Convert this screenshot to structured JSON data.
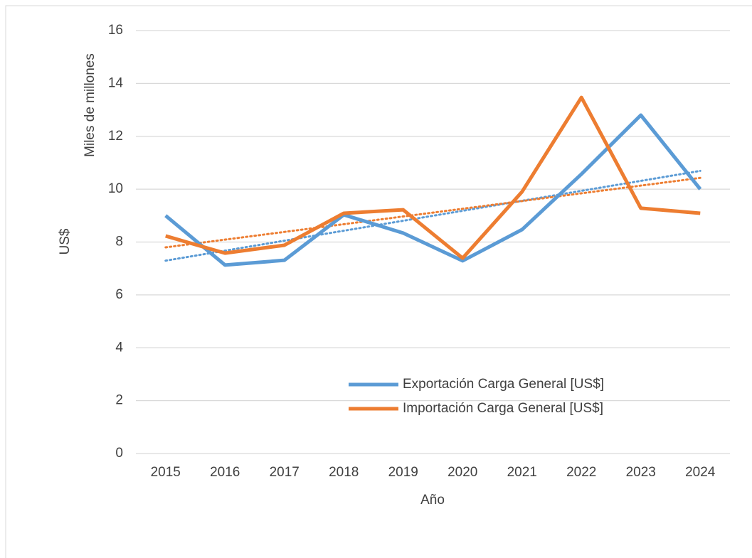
{
  "chart_data": {
    "type": "line",
    "y_label": "US$",
    "y_sublabel": "Miles de millones",
    "x_label": "Año",
    "categories": [
      "2015",
      "2016",
      "2017",
      "2018",
      "2019",
      "2020",
      "2021",
      "2022",
      "2023",
      "2024"
    ],
    "series": [
      {
        "name": "Exportación Carga General [US$]",
        "color": "#5b9bd5",
        "values": [
          9.0,
          7.13,
          7.31,
          9.03,
          8.34,
          7.29,
          8.47,
          10.57,
          12.8,
          10.0
        ]
      },
      {
        "name": "Importación Carga General [US$]",
        "color": "#ed7d31",
        "values": [
          8.23,
          7.58,
          7.88,
          9.09,
          9.22,
          7.39,
          9.9,
          13.47,
          9.28,
          9.09
        ]
      }
    ],
    "ylim": [
      0,
      16
    ],
    "yticks": [
      0,
      2,
      4,
      6,
      8,
      10,
      12,
      14,
      16
    ],
    "grid": true,
    "trendline": "linear"
  }
}
